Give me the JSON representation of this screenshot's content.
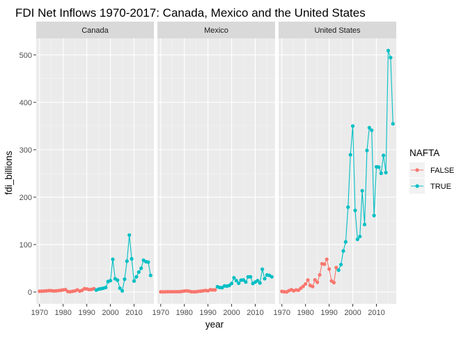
{
  "chart_data": {
    "type": "line",
    "title": "FDI Net Inflows 1970-2017: Canada, Mexico and the United States",
    "xlabel": "year",
    "ylabel": "fdi_billions",
    "xlim": [
      1968.6,
      2018.4
    ],
    "ylim": [
      -25,
      535
    ],
    "x_ticks": [
      1970,
      1980,
      1990,
      2000,
      2010
    ],
    "y_ticks": [
      0,
      100,
      200,
      300,
      400,
      500
    ],
    "grid": true,
    "legend": {
      "title": "NAFTA",
      "position": "right",
      "entries": [
        {
          "label": "FALSE",
          "color": "#F8766D"
        },
        {
          "label": "TRUE",
          "color": "#00BFC4"
        }
      ]
    },
    "colors": {
      "FALSE": "#F8766D",
      "TRUE": "#00BFC4",
      "panel_bg": "#EBEBEB",
      "strip_bg": "#D9D9D9"
    },
    "nafta_start_year": 1994,
    "facets": [
      {
        "name": "Canada",
        "x": [
          1970,
          1971,
          1972,
          1973,
          1974,
          1975,
          1976,
          1977,
          1978,
          1979,
          1980,
          1981,
          1982,
          1983,
          1984,
          1985,
          1986,
          1987,
          1988,
          1989,
          1990,
          1991,
          1992,
          1993,
          1994,
          1995,
          1996,
          1997,
          1998,
          1999,
          2000,
          2001,
          2002,
          2003,
          2004,
          2005,
          2006,
          2007,
          2008,
          2009,
          2010,
          2011,
          2012,
          2013,
          2014,
          2015,
          2016,
          2017
        ],
        "y": [
          1.5,
          1.8,
          2.0,
          2.5,
          3.0,
          2.8,
          2.2,
          2.5,
          3.0,
          3.5,
          4.5,
          5.0,
          1.0,
          0.5,
          1.5,
          2.5,
          4.5,
          2.0,
          3.5,
          7.0,
          6.5,
          5.0,
          5.5,
          7.0,
          4.0,
          6.0,
          7.0,
          8.0,
          9.5,
          22.0,
          24.0,
          69.0,
          28.0,
          25.0,
          8.0,
          2.5,
          27.0,
          65.0,
          120.0,
          70.0,
          23.0,
          32.0,
          42.0,
          50.0,
          67.0,
          64.0,
          63.0,
          35.0
        ]
      },
      {
        "name": "Mexico",
        "x": [
          1970,
          1971,
          1972,
          1973,
          1974,
          1975,
          1976,
          1977,
          1978,
          1979,
          1980,
          1981,
          1982,
          1983,
          1984,
          1985,
          1986,
          1987,
          1988,
          1989,
          1990,
          1991,
          1992,
          1993,
          1994,
          1995,
          1996,
          1997,
          1998,
          1999,
          2000,
          2001,
          2002,
          2003,
          2004,
          2005,
          2006,
          2007,
          2008,
          2009,
          2010,
          2011,
          2012,
          2013,
          2014,
          2015,
          2016,
          2017
        ],
        "y": [
          0.3,
          0.3,
          0.4,
          0.5,
          0.6,
          0.6,
          0.6,
          0.6,
          0.7,
          1.3,
          2.1,
          2.5,
          1.7,
          0.5,
          0.4,
          0.5,
          1.5,
          1.8,
          2.6,
          3.2,
          2.6,
          4.8,
          4.4,
          4.4,
          11.0,
          9.5,
          9.2,
          12.8,
          12.4,
          13.8,
          18.0,
          30.0,
          24.0,
          18.5,
          25.0,
          25.5,
          21.0,
          32.0,
          32.0,
          18.0,
          21.0,
          24.0,
          19.0,
          48.0,
          28.0,
          36.0,
          35.0,
          32.0
        ]
      },
      {
        "name": "United States",
        "x": [
          1970,
          1971,
          1972,
          1973,
          1974,
          1975,
          1976,
          1977,
          1978,
          1979,
          1980,
          1981,
          1982,
          1983,
          1984,
          1985,
          1986,
          1987,
          1988,
          1989,
          1990,
          1991,
          1992,
          1993,
          1994,
          1995,
          1996,
          1997,
          1998,
          1999,
          2000,
          2001,
          2002,
          2003,
          2004,
          2005,
          2006,
          2007,
          2008,
          2009,
          2010,
          2011,
          2012,
          2013,
          2014,
          2015,
          2016,
          2017
        ],
        "y": [
          1.3,
          0.4,
          0.2,
          2.8,
          4.8,
          2.6,
          4.3,
          3.7,
          7.9,
          11.9,
          17.0,
          25.2,
          13.8,
          11.5,
          25.6,
          20.5,
          36.1,
          59.6,
          58.6,
          69.0,
          48.4,
          23.2,
          19.8,
          51.4,
          46.1,
          57.8,
          86.5,
          105.6,
          179.0,
          289.4,
          350.1,
          172.0,
          111.0,
          117.1,
          213.6,
          142.3,
          298.5,
          346.6,
          341.1,
          161.3,
          264.0,
          263.5,
          250.3,
          288.1,
          251.9,
          509.1,
          494.4,
          354.8
        ]
      }
    ]
  }
}
